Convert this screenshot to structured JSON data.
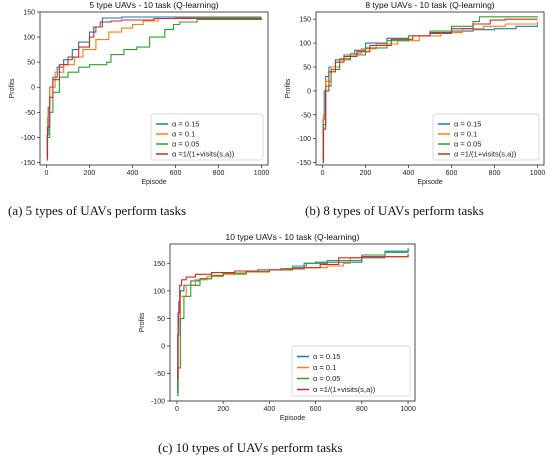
{
  "captions": {
    "a": "(a) 5 types of UAVs perform tasks",
    "b": "(b) 8 types of UAVs perform tasks",
    "c": "(c) 10 types of UAVs perform tasks"
  },
  "chart_data": [
    {
      "type": "line",
      "title": "5 type UAVs - 10 task (Q-learning)",
      "xlabel": "Episode",
      "ylabel": "Profits",
      "xlim": [
        -30,
        1030
      ],
      "ylim": [
        -155,
        150
      ],
      "xticks": [
        0,
        200,
        400,
        600,
        800,
        1000
      ],
      "yticks": [
        -150,
        -100,
        -50,
        0,
        50,
        100,
        150
      ],
      "legend_position": "bottom-right",
      "grid": false,
      "series": [
        {
          "name": "α = 0.15",
          "color": "#1f77b4",
          "points": [
            [
              0,
              -140
            ],
            [
              3,
              -95
            ],
            [
              8,
              -40
            ],
            [
              15,
              0
            ],
            [
              30,
              20
            ],
            [
              50,
              40
            ],
            [
              80,
              55
            ],
            [
              120,
              75
            ],
            [
              150,
              90
            ],
            [
              200,
              110
            ],
            [
              230,
              120
            ],
            [
              260,
              138
            ],
            [
              350,
              140
            ],
            [
              600,
              140
            ],
            [
              1000,
              140
            ]
          ]
        },
        {
          "name": "α = 0.1",
          "color": "#ff7f0e",
          "points": [
            [
              0,
              -135
            ],
            [
              5,
              -60
            ],
            [
              15,
              0
            ],
            [
              40,
              30
            ],
            [
              80,
              45
            ],
            [
              130,
              60
            ],
            [
              170,
              75
            ],
            [
              230,
              95
            ],
            [
              290,
              110
            ],
            [
              350,
              118
            ],
            [
              400,
              125
            ],
            [
              450,
              132
            ],
            [
              520,
              137
            ],
            [
              600,
              138
            ],
            [
              1000,
              138
            ]
          ]
        },
        {
          "name": "α = 0.05",
          "color": "#2ca02c",
          "points": [
            [
              0,
              -140
            ],
            [
              5,
              -100
            ],
            [
              15,
              -50
            ],
            [
              30,
              -10
            ],
            [
              60,
              20
            ],
            [
              100,
              30
            ],
            [
              150,
              40
            ],
            [
              200,
              45
            ],
            [
              250,
              45
            ],
            [
              280,
              50
            ],
            [
              300,
              65
            ],
            [
              360,
              75
            ],
            [
              420,
              80
            ],
            [
              480,
              100
            ],
            [
              550,
              115
            ],
            [
              590,
              125
            ],
            [
              620,
              130
            ],
            [
              700,
              135
            ],
            [
              1000,
              137
            ]
          ]
        },
        {
          "name": "α =1/(1+visits(s,a))",
          "color": "#d62728",
          "points": [
            [
              0,
              -145
            ],
            [
              5,
              -80
            ],
            [
              15,
              -20
            ],
            [
              30,
              15
            ],
            [
              60,
              45
            ],
            [
              100,
              60
            ],
            [
              150,
              80
            ],
            [
              200,
              100
            ],
            [
              220,
              120
            ],
            [
              250,
              130
            ],
            [
              300,
              132
            ],
            [
              350,
              134
            ],
            [
              400,
              134
            ],
            [
              500,
              137
            ],
            [
              1000,
              137
            ]
          ]
        }
      ]
    },
    {
      "type": "line",
      "title": "8 type UAVs - 10 task (Q-learning)",
      "xlabel": "Episode",
      "ylabel": "Profits",
      "xlim": [
        -30,
        1030
      ],
      "ylim": [
        -155,
        165
      ],
      "xticks": [
        0,
        200,
        400,
        600,
        800,
        1000
      ],
      "yticks": [
        -150,
        -100,
        -50,
        0,
        50,
        100,
        150
      ],
      "legend_position": "bottom-right",
      "grid": false,
      "series": [
        {
          "name": "α = 0.15",
          "color": "#1f77b4",
          "points": [
            [
              0,
              -145
            ],
            [
              3,
              -60
            ],
            [
              8,
              0
            ],
            [
              15,
              30
            ],
            [
              30,
              50
            ],
            [
              60,
              65
            ],
            [
              100,
              75
            ],
            [
              150,
              85
            ],
            [
              200,
              100
            ],
            [
              300,
              110
            ],
            [
              400,
              115
            ],
            [
              500,
              120
            ],
            [
              600,
              125
            ],
            [
              700,
              128
            ],
            [
              800,
              130
            ],
            [
              900,
              135
            ],
            [
              1000,
              138
            ]
          ]
        },
        {
          "name": "α = 0.1",
          "color": "#ff7f0e",
          "points": [
            [
              0,
              -140
            ],
            [
              5,
              -50
            ],
            [
              15,
              20
            ],
            [
              40,
              50
            ],
            [
              80,
              68
            ],
            [
              130,
              78
            ],
            [
              180,
              88
            ],
            [
              250,
              98
            ],
            [
              350,
              105
            ],
            [
              450,
              115
            ],
            [
              550,
              122
            ],
            [
              650,
              130
            ],
            [
              750,
              135
            ],
            [
              850,
              140
            ],
            [
              1000,
              145
            ]
          ]
        },
        {
          "name": "α = 0.05",
          "color": "#2ca02c",
          "points": [
            [
              0,
              -145
            ],
            [
              5,
              -70
            ],
            [
              15,
              10
            ],
            [
              40,
              45
            ],
            [
              80,
              65
            ],
            [
              130,
              75
            ],
            [
              200,
              90
            ],
            [
              300,
              105
            ],
            [
              400,
              115
            ],
            [
              500,
              125
            ],
            [
              600,
              135
            ],
            [
              700,
              145
            ],
            [
              730,
              155
            ],
            [
              800,
              155
            ],
            [
              1000,
              156
            ]
          ]
        },
        {
          "name": "α =1/(1+visits(s,a))",
          "color": "#d62728",
          "points": [
            [
              0,
              -150
            ],
            [
              5,
              -80
            ],
            [
              15,
              0
            ],
            [
              30,
              40
            ],
            [
              60,
              60
            ],
            [
              100,
              72
            ],
            [
              160,
              82
            ],
            [
              220,
              95
            ],
            [
              320,
              108
            ],
            [
              420,
              115
            ],
            [
              500,
              122
            ],
            [
              600,
              130
            ],
            [
              700,
              140
            ],
            [
              780,
              148
            ],
            [
              850,
              150
            ],
            [
              1000,
              150
            ]
          ]
        }
      ]
    },
    {
      "type": "line",
      "title": "10 type UAVs - 10 task (Q-learning)",
      "xlabel": "Episode",
      "ylabel": "Profits",
      "xlim": [
        -30,
        1030
      ],
      "ylim": [
        -100,
        185
      ],
      "xticks": [
        0,
        200,
        400,
        600,
        800,
        1000
      ],
      "yticks": [
        -100,
        -50,
        0,
        50,
        100,
        150
      ],
      "legend_position": "bottom-right",
      "grid": false,
      "series": [
        {
          "name": "α = 0.15",
          "color": "#1f77b4",
          "points": [
            [
              0,
              -85
            ],
            [
              3,
              20
            ],
            [
              8,
              80
            ],
            [
              15,
              100
            ],
            [
              30,
              110
            ],
            [
              60,
              118
            ],
            [
              100,
              122
            ],
            [
              150,
              128
            ],
            [
              200,
              132
            ],
            [
              300,
              135
            ],
            [
              400,
              138
            ],
            [
              500,
              142
            ],
            [
              550,
              150
            ],
            [
              600,
              152
            ],
            [
              800,
              160
            ],
            [
              900,
              172
            ],
            [
              1000,
              178
            ]
          ]
        },
        {
          "name": "α = 0.1",
          "color": "#ff7f0e",
          "points": [
            [
              0,
              -80
            ],
            [
              5,
              40
            ],
            [
              15,
              90
            ],
            [
              40,
              110
            ],
            [
              80,
              120
            ],
            [
              130,
              126
            ],
            [
              200,
              130
            ],
            [
              300,
              134
            ],
            [
              400,
              138
            ],
            [
              480,
              140
            ],
            [
              550,
              142
            ],
            [
              650,
              145
            ],
            [
              720,
              150
            ],
            [
              750,
              160
            ],
            [
              800,
              162
            ],
            [
              1000,
              165
            ]
          ]
        },
        {
          "name": "α = 0.05",
          "color": "#2ca02c",
          "points": [
            [
              0,
              -90
            ],
            [
              5,
              -40
            ],
            [
              15,
              50
            ],
            [
              30,
              90
            ],
            [
              60,
              110
            ],
            [
              100,
              122
            ],
            [
              150,
              128
            ],
            [
              200,
              132
            ],
            [
              300,
              135
            ],
            [
              400,
              138
            ],
            [
              500,
              145
            ],
            [
              560,
              150
            ],
            [
              650,
              155
            ],
            [
              800,
              165
            ],
            [
              900,
              170
            ],
            [
              1000,
              175
            ]
          ]
        },
        {
          "name": "α =1/(1+visits(s,a))",
          "color": "#d62728",
          "points": [
            [
              0,
              -60
            ],
            [
              5,
              60
            ],
            [
              12,
              110
            ],
            [
              20,
              120
            ],
            [
              40,
              125
            ],
            [
              80,
              130
            ],
            [
              150,
              133
            ],
            [
              250,
              136
            ],
            [
              350,
              138
            ],
            [
              450,
              140
            ],
            [
              550,
              142
            ],
            [
              620,
              148
            ],
            [
              700,
              160
            ],
            [
              800,
              162
            ],
            [
              1000,
              167
            ]
          ]
        }
      ]
    }
  ]
}
